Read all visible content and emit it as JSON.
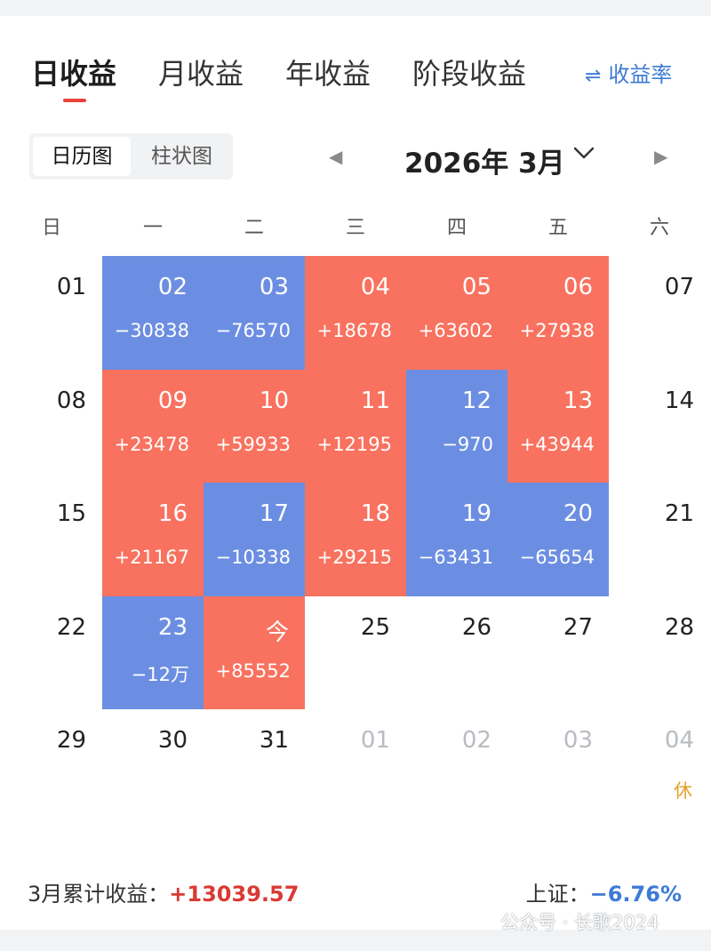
{
  "tabs": [
    {
      "label": "日收益",
      "active": true
    },
    {
      "label": "月收益",
      "active": false
    },
    {
      "label": "年收益",
      "active": false
    },
    {
      "label": "阶段收益",
      "active": false
    }
  ],
  "rate_link": {
    "icon": "swap-arrows-icon",
    "label": "收益率"
  },
  "view_toggle": [
    {
      "label": "日历图",
      "active": true
    },
    {
      "label": "柱状图",
      "active": false
    }
  ],
  "month": {
    "title": "2026年 3月",
    "prev_icon": "triangle-left-icon",
    "next_icon": "triangle-right-icon",
    "dropdown_icon": "chevron-down-icon"
  },
  "weekdays": [
    "日",
    "一",
    "二",
    "三",
    "四",
    "五",
    "六"
  ],
  "colors": {
    "gain": "#f8725f",
    "loss": "#6c8ee2",
    "gain_text": "#d93a33",
    "loss_text": "#3d7bd6",
    "holiday": "#e2a12a"
  },
  "calendar": [
    [
      {
        "date": "01",
        "status": "none",
        "amount": ""
      },
      {
        "date": "02",
        "status": "down",
        "amount": "−30838"
      },
      {
        "date": "03",
        "status": "down",
        "amount": "−76570"
      },
      {
        "date": "04",
        "status": "up",
        "amount": "+18678"
      },
      {
        "date": "05",
        "status": "up",
        "amount": "+63602"
      },
      {
        "date": "06",
        "status": "up",
        "amount": "+27938"
      },
      {
        "date": "07",
        "status": "none",
        "amount": ""
      }
    ],
    [
      {
        "date": "08",
        "status": "none",
        "amount": ""
      },
      {
        "date": "09",
        "status": "up",
        "amount": "+23478"
      },
      {
        "date": "10",
        "status": "up",
        "amount": "+59933"
      },
      {
        "date": "11",
        "status": "up",
        "amount": "+12195"
      },
      {
        "date": "12",
        "status": "down",
        "amount": "−970"
      },
      {
        "date": "13",
        "status": "up",
        "amount": "+43944"
      },
      {
        "date": "14",
        "status": "none",
        "amount": ""
      }
    ],
    [
      {
        "date": "15",
        "status": "none",
        "amount": ""
      },
      {
        "date": "16",
        "status": "up",
        "amount": "+21167"
      },
      {
        "date": "17",
        "status": "down",
        "amount": "−10338"
      },
      {
        "date": "18",
        "status": "up",
        "amount": "+29215"
      },
      {
        "date": "19",
        "status": "down",
        "amount": "−63431"
      },
      {
        "date": "20",
        "status": "down",
        "amount": "−65654"
      },
      {
        "date": "21",
        "status": "none",
        "amount": ""
      }
    ],
    [
      {
        "date": "22",
        "status": "none",
        "amount": ""
      },
      {
        "date": "23",
        "status": "down",
        "amount": "−12万"
      },
      {
        "date": "今",
        "status": "up",
        "amount": "+85552"
      },
      {
        "date": "25",
        "status": "none",
        "amount": ""
      },
      {
        "date": "26",
        "status": "none",
        "amount": ""
      },
      {
        "date": "27",
        "status": "none",
        "amount": ""
      },
      {
        "date": "28",
        "status": "none",
        "amount": ""
      }
    ],
    [
      {
        "date": "29",
        "status": "none",
        "amount": ""
      },
      {
        "date": "30",
        "status": "none",
        "amount": ""
      },
      {
        "date": "31",
        "status": "none",
        "amount": ""
      },
      {
        "date": "01",
        "status": "other",
        "amount": ""
      },
      {
        "date": "02",
        "status": "other",
        "amount": ""
      },
      {
        "date": "03",
        "status": "other",
        "amount": ""
      },
      {
        "date": "04",
        "status": "other",
        "amount": "",
        "note": "休"
      }
    ]
  ],
  "summary": {
    "label": "3月累计收益：",
    "value": "+13039.57",
    "index_label": "上证：",
    "index_value": "−6.76%"
  },
  "watermark": "公众号 · 长歌2024"
}
